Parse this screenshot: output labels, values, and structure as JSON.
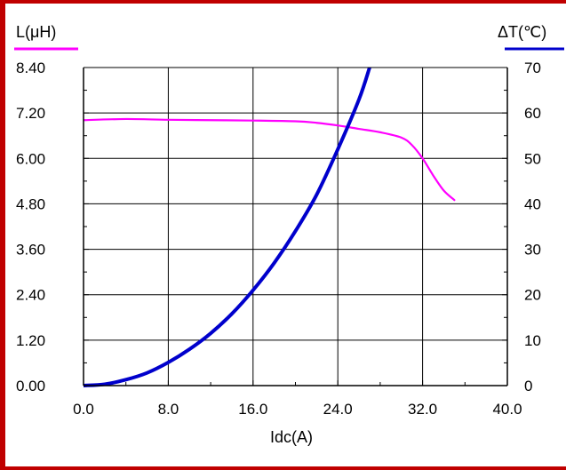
{
  "chart_data": {
    "type": "line",
    "title": "",
    "xlabel": "Idc(A)",
    "ylabel_left": "L(μH)",
    "ylabel_right": "ΔT(℃)",
    "xlim": [
      0,
      40
    ],
    "ylim_left": [
      0,
      8.4
    ],
    "ylim_right": [
      0,
      70
    ],
    "x_ticks": [
      "0.0",
      "8.0",
      "16.0",
      "24.0",
      "32.0",
      "40.0"
    ],
    "y_left_ticks": [
      "0.00",
      "1.20",
      "2.40",
      "3.60",
      "4.80",
      "6.00",
      "7.20",
      "8.40"
    ],
    "y_right_ticks": [
      "0",
      "10",
      "20",
      "30",
      "40",
      "50",
      "60",
      "70"
    ],
    "grid": true,
    "series": [
      {
        "axis": "left",
        "color": "#ff00ff",
        "x": [
          0,
          4,
          8,
          12,
          16,
          20,
          22,
          24,
          26,
          28,
          30,
          31,
          32,
          33,
          34,
          35
        ],
        "y": [
          7.01,
          7.04,
          7.02,
          7.01,
          7.0,
          6.98,
          6.94,
          6.87,
          6.78,
          6.69,
          6.55,
          6.35,
          6.0,
          5.55,
          5.15,
          4.9
        ]
      },
      {
        "axis": "right",
        "color": "#0000cc",
        "x": [
          0,
          2,
          4,
          6,
          8,
          10,
          12,
          14,
          16,
          18,
          20,
          22,
          24,
          26,
          27
        ],
        "y": [
          0,
          0.3,
          1.3,
          2.8,
          5.1,
          8.0,
          11.5,
          15.8,
          21.0,
          27.0,
          34.0,
          42.0,
          52.0,
          63.0,
          70.0
        ]
      }
    ]
  }
}
